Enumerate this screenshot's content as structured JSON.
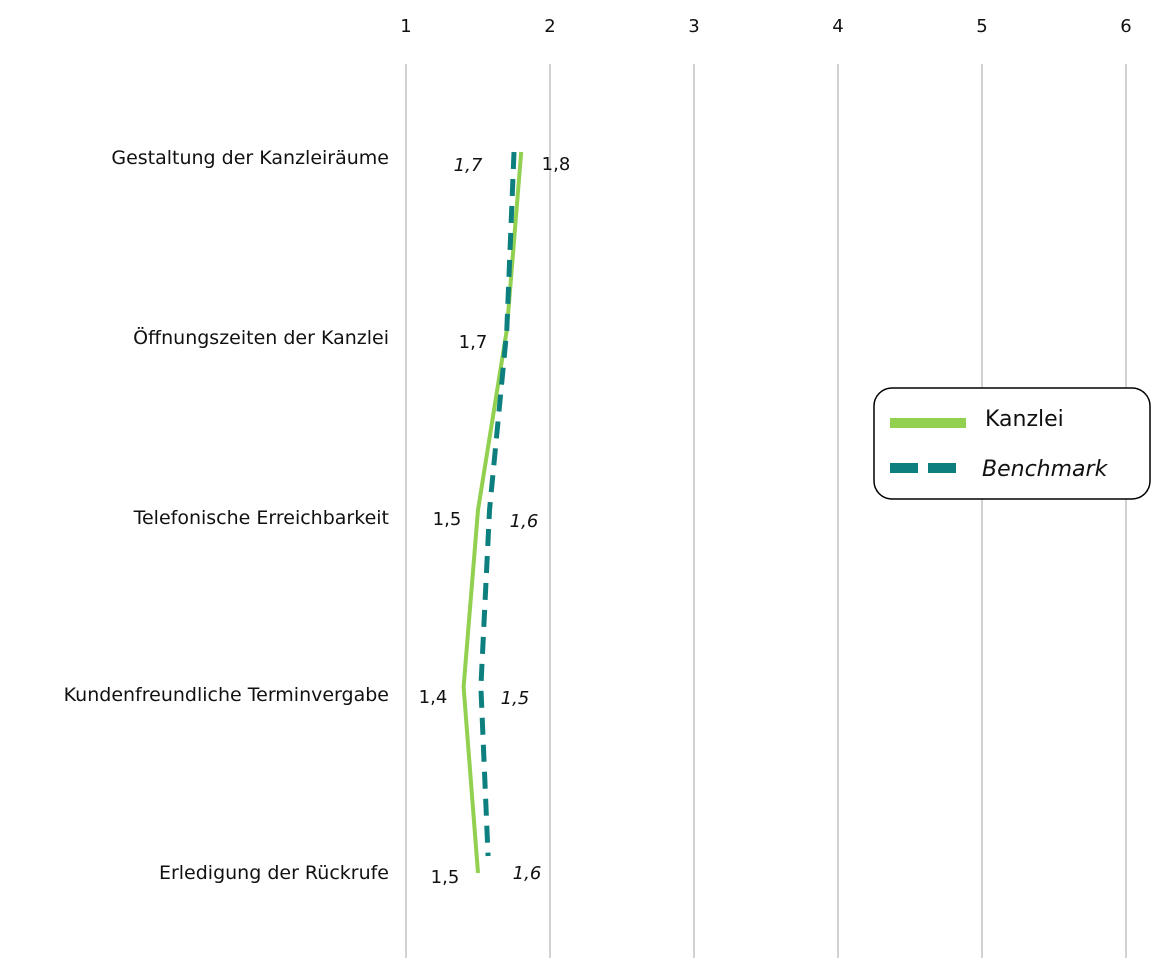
{
  "chart_data": {
    "type": "line",
    "orientation": "horizontal",
    "title": "",
    "xlabel": "",
    "ylabel": "",
    "xlim": [
      1,
      6
    ],
    "x_ticks": [
      "1",
      "2",
      "3",
      "4",
      "5",
      "6"
    ],
    "x_axis_position": "top",
    "grid": "vertical",
    "legend_position": "right",
    "categories": [
      "Gestaltung der Kanzleiräume",
      "Öffnungszeiten der Kanzlei",
      "Telefonische Erreichbarkeit",
      "Kundenfreundliche Terminvergabe",
      "Erledigung der Rückrufe"
    ],
    "series": [
      {
        "name": "Kanzlei",
        "values": [
          1.8,
          1.7,
          1.5,
          1.4,
          1.5
        ],
        "labels": [
          "1,8",
          "1,7",
          "1,5",
          "1,4",
          "1,5"
        ],
        "color": "#92d050",
        "style": "solid"
      },
      {
        "name": "Benchmark",
        "values": [
          1.75,
          1.7,
          1.58,
          1.52,
          1.57
        ],
        "labels": [
          "1,7",
          "",
          "1,6",
          "1,5",
          "1,6"
        ],
        "color": "#0e7f7f",
        "style": "dashed"
      }
    ]
  }
}
